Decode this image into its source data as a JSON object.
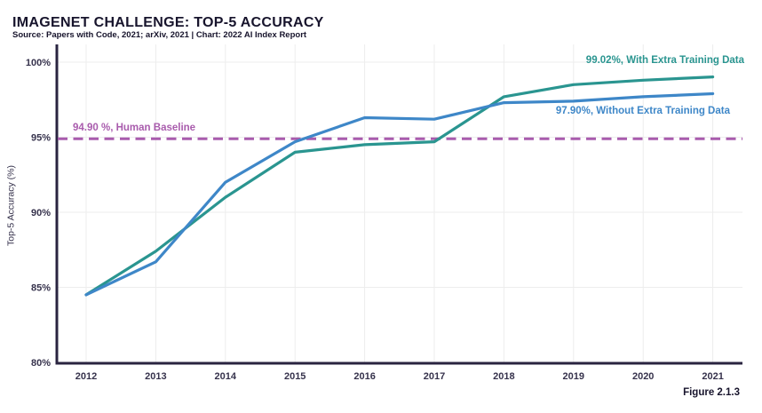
{
  "header": {
    "title": "IMAGENET CHALLENGE: TOP-5 ACCURACY",
    "source_line": "Source: Papers with Code, 2021; arXiv, 2021 | Chart: 2022 AI Index Report"
  },
  "figure_label": "Figure 2.1.3",
  "colors": {
    "with_extra_data": "#2a9590",
    "without_extra_data": "#3e87c8",
    "human_baseline": "#a95cad",
    "title_text": "#17142c",
    "axis_line": "#2a2440",
    "tick_text": "#36324c",
    "gridline": "#ededed",
    "background": "#ffffff"
  },
  "chart_data": {
    "type": "line",
    "title": "IMAGENET CHALLENGE: TOP-5 ACCURACY",
    "xlabel": "",
    "ylabel": "Top-5 Accuracy (%)",
    "ylim": [
      80,
      100
    ],
    "grid": true,
    "legend_position": "inline-annotations",
    "x": [
      2012,
      2013,
      2014,
      2015,
      2016,
      2017,
      2018,
      2019,
      2020,
      2021
    ],
    "yticks": [
      100,
      95,
      90,
      85,
      80
    ],
    "ytick_suffix": "%",
    "series": [
      {
        "name": "With Extra Training Data",
        "color": "#2a9590",
        "values": [
          84.5,
          87.4,
          91.0,
          94.0,
          94.5,
          94.7,
          97.7,
          98.5,
          98.8,
          99.02
        ],
        "annotation": "99.02%, With Extra Training Data"
      },
      {
        "name": "Without Extra Training Data",
        "color": "#3e87c8",
        "values": [
          84.5,
          86.7,
          92.0,
          94.7,
          96.3,
          96.2,
          97.3,
          97.4,
          97.7,
          97.9
        ],
        "annotation": "97.90%, Without Extra Training Data"
      }
    ],
    "baseline": {
      "value": 94.9,
      "label": "94.90 %, Human Baseline",
      "line_style": "dashed"
    }
  }
}
